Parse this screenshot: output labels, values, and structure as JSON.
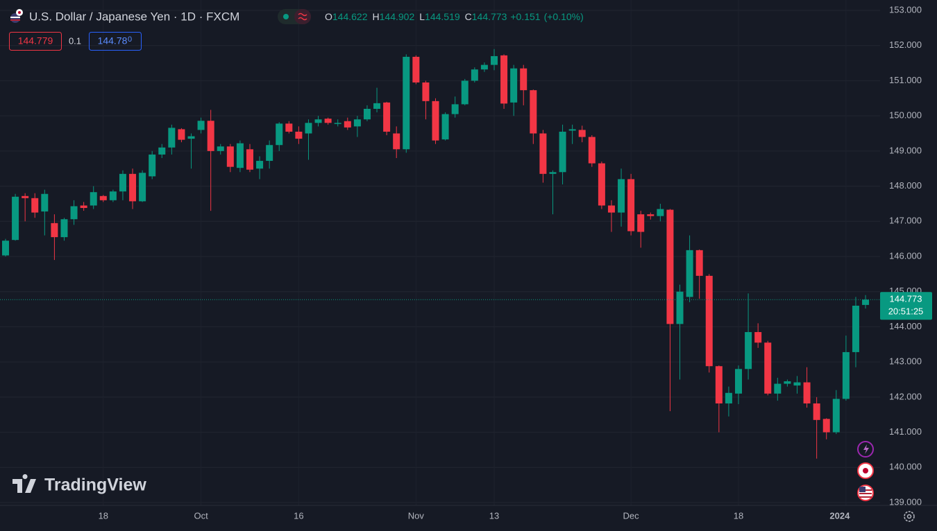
{
  "header": {
    "title": "U.S. Dollar / Japanese Yen · 1D · FXCM",
    "ohlc_labels": [
      "O",
      "H",
      "L",
      "C"
    ],
    "change": "+0.151",
    "change_pct": "(+0.10%)",
    "sell": 144.779,
    "spread": 0.1,
    "buy_main": "144.78",
    "buy_small": "0",
    "logo": "TradingView"
  },
  "chart_data": {
    "type": "candlestick",
    "up_color": "#089981",
    "down_color": "#f23645",
    "countdown": "20:51:25",
    "grid": true,
    "categories": [
      null,
      null,
      null,
      null,
      null,
      null,
      null,
      null,
      null,
      null,
      "18",
      null,
      null,
      null,
      null,
      null,
      null,
      null,
      null,
      null,
      "Oct",
      null,
      null,
      null,
      null,
      null,
      null,
      null,
      null,
      null,
      "16",
      null,
      null,
      null,
      null,
      null,
      null,
      null,
      null,
      null,
      null,
      null,
      "Nov",
      null,
      null,
      null,
      null,
      null,
      null,
      null,
      "13",
      null,
      null,
      null,
      null,
      null,
      null,
      null,
      null,
      null,
      null,
      null,
      null,
      null,
      "Dec",
      null,
      null,
      null,
      null,
      null,
      null,
      null,
      null,
      null,
      null,
      "18",
      null,
      null,
      null,
      null,
      null,
      null,
      null,
      null,
      null,
      null,
      "2024",
      null,
      null
    ],
    "open": [
      146.03,
      146.47,
      147.72,
      147.66,
      147.28,
      146.95,
      146.55,
      147.06,
      147.45,
      147.45,
      147.72,
      147.6,
      147.85,
      148.35,
      147.57,
      148.28,
      148.9,
      149.1,
      149.62,
      149.35,
      149.6,
      149.86,
      149.0,
      149.13,
      148.52,
      149.05,
      148.5,
      148.72,
      149.17,
      149.78,
      149.55,
      149.5,
      149.8,
      149.92,
      149.77,
      149.85,
      149.7,
      149.9,
      150.2,
      150.38,
      149.5,
      149.05,
      151.68,
      150.95,
      150.42,
      149.33,
      150.05,
      150.33,
      151.0,
      151.32,
      151.45,
      151.72,
      150.38,
      151.35,
      150.73,
      149.5,
      148.35,
      148.4,
      149.58,
      149.6,
      149.4,
      148.65,
      147.45,
      147.25,
      148.2,
      147.2,
      147.2,
      147.15,
      147.33,
      144.08,
      144.85,
      146.18,
      145.45,
      142.88,
      141.82,
      142.1,
      142.8,
      143.85,
      143.55,
      142.1,
      142.38,
      142.33,
      142.42,
      141.82,
      141.38,
      141.0,
      141.95,
      143.28,
      144.622
    ],
    "high": [
      146.5,
      147.78,
      147.8,
      147.8,
      147.9,
      147.2,
      147.1,
      147.6,
      147.55,
      148.0,
      147.75,
      147.9,
      148.45,
      148.5,
      148.45,
      149.0,
      149.2,
      149.75,
      149.65,
      149.5,
      149.95,
      150.17,
      149.2,
      149.2,
      149.3,
      149.2,
      148.85,
      149.3,
      149.82,
      149.85,
      149.7,
      149.9,
      150.0,
      149.95,
      149.9,
      149.95,
      150.0,
      150.3,
      150.8,
      150.4,
      149.7,
      151.75,
      151.72,
      151.0,
      150.5,
      150.1,
      150.55,
      151.05,
      151.38,
      151.52,
      151.9,
      151.75,
      151.45,
      151.45,
      150.75,
      149.6,
      148.45,
      149.75,
      149.75,
      149.72,
      149.45,
      148.7,
      147.6,
      148.5,
      148.35,
      147.3,
      147.25,
      147.5,
      147.35,
      145.2,
      146.6,
      146.2,
      145.5,
      142.9,
      142.3,
      142.9,
      144.95,
      144.1,
      143.6,
      142.55,
      142.5,
      142.6,
      142.85,
      142.0,
      141.4,
      142.2,
      143.75,
      144.85,
      144.902
    ],
    "low": [
      146.0,
      146.45,
      147.0,
      147.1,
      146.6,
      145.9,
      146.45,
      146.9,
      147.3,
      147.35,
      147.55,
      147.55,
      147.6,
      147.35,
      147.55,
      148.2,
      148.8,
      148.9,
      149.25,
      148.5,
      149.5,
      147.3,
      148.9,
      148.4,
      148.4,
      148.4,
      148.2,
      148.5,
      149.0,
      149.5,
      149.2,
      148.75,
      149.7,
      149.75,
      149.7,
      149.6,
      149.4,
      149.85,
      150.1,
      149.45,
      148.8,
      148.95,
      150.9,
      149.9,
      149.2,
      149.3,
      149.95,
      150.3,
      150.95,
      151.25,
      151.3,
      150.2,
      150.0,
      150.3,
      149.2,
      148.1,
      147.2,
      148.05,
      149.2,
      149.25,
      148.55,
      147.35,
      146.7,
      146.85,
      146.6,
      146.25,
      147.05,
      147.0,
      141.6,
      142.5,
      144.7,
      144.8,
      142.7,
      141.0,
      141.45,
      141.8,
      142.5,
      143.4,
      142.05,
      141.9,
      142.3,
      142.1,
      141.7,
      140.25,
      140.8,
      140.95,
      141.9,
      142.85,
      144.519
    ],
    "close": [
      146.45,
      147.7,
      147.66,
      147.25,
      147.78,
      146.55,
      147.06,
      147.43,
      147.38,
      147.83,
      147.6,
      147.85,
      148.35,
      147.57,
      148.38,
      148.9,
      149.1,
      149.66,
      149.32,
      149.42,
      149.86,
      149.0,
      149.13,
      148.55,
      149.22,
      148.47,
      148.72,
      149.17,
      149.78,
      149.55,
      149.35,
      149.8,
      149.9,
      149.8,
      149.8,
      149.67,
      149.9,
      150.2,
      150.36,
      149.55,
      149.05,
      151.68,
      150.95,
      150.42,
      149.3,
      150.05,
      150.33,
      151.0,
      151.32,
      151.45,
      151.7,
      150.35,
      151.35,
      150.73,
      149.5,
      148.35,
      148.4,
      149.55,
      149.62,
      149.4,
      148.65,
      147.45,
      147.25,
      148.2,
      146.72,
      146.7,
      147.15,
      147.35,
      144.08,
      145.0,
      146.18,
      145.45,
      142.88,
      141.82,
      142.12,
      142.8,
      143.85,
      143.55,
      142.1,
      142.38,
      142.45,
      142.42,
      141.82,
      141.35,
      141.0,
      141.95,
      143.28,
      144.6,
      144.773
    ],
    "ylim": [
      139,
      153
    ],
    "yticks": [
      {
        "value": 139,
        "label": "139.000"
      },
      {
        "value": 140,
        "label": "140.000"
      },
      {
        "value": 141,
        "label": "141.000"
      },
      {
        "value": 142,
        "label": "142.000"
      },
      {
        "value": 143,
        "label": "143.000"
      },
      {
        "value": 144,
        "label": "144.000"
      },
      {
        "value": 145,
        "label": "145.000"
      },
      {
        "value": 146,
        "label": "146.000"
      },
      {
        "value": 147,
        "label": "147.000"
      },
      {
        "value": 148,
        "label": "148.000"
      },
      {
        "value": 149,
        "label": "149.000"
      },
      {
        "value": 150,
        "label": "150.000"
      },
      {
        "value": 151,
        "label": "151.000"
      },
      {
        "value": 152,
        "label": "152.000"
      },
      {
        "value": 153,
        "label": "153.000"
      }
    ]
  }
}
